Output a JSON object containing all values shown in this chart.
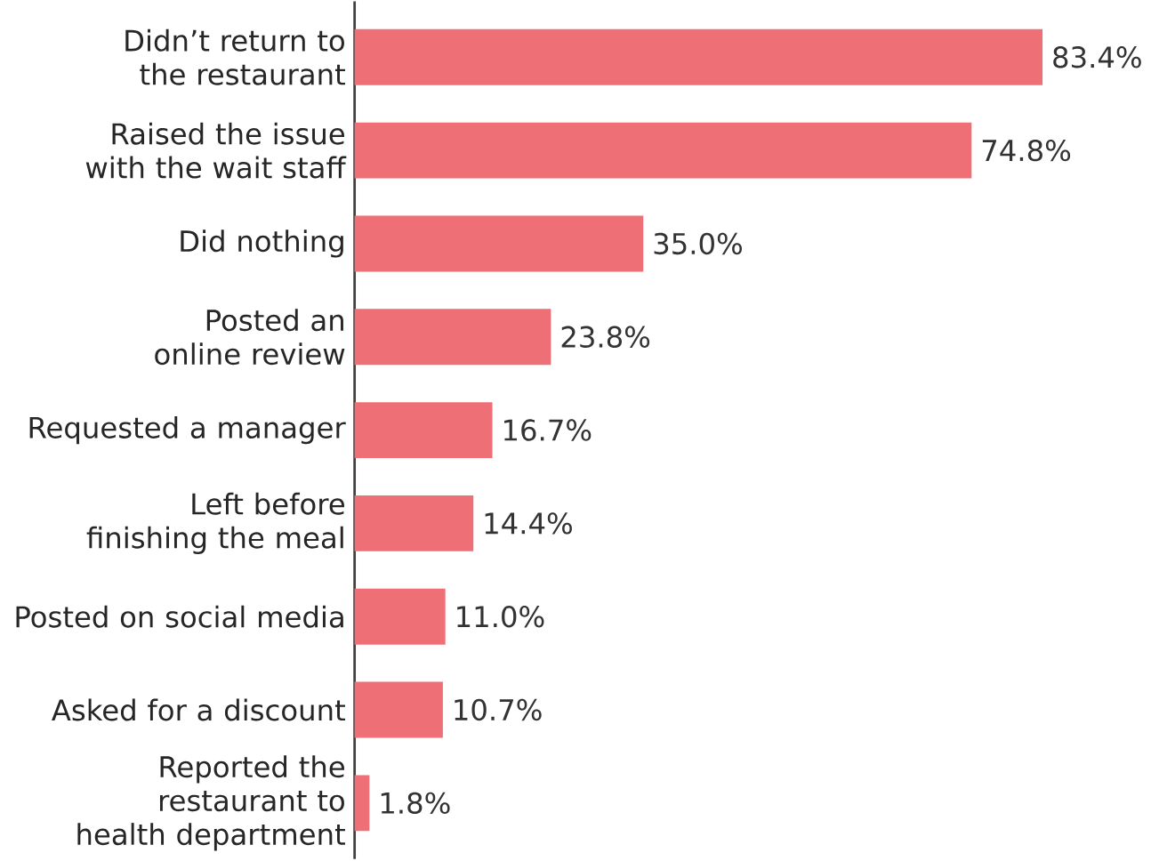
{
  "chart_data": {
    "type": "bar",
    "orientation": "horizontal",
    "categories": [
      "Didn’t return to the restaurant",
      "Raised the issue with the wait staff",
      "Did nothing",
      "Posted an online review",
      "Requested a manager",
      "Left before finishing the meal",
      "Posted on social media",
      "Asked for a discount",
      "Reported the restaurant to health department"
    ],
    "values": [
      83.4,
      74.8,
      35.0,
      23.8,
      16.7,
      14.4,
      11.0,
      10.7,
      1.8
    ],
    "value_labels": [
      "83.4%",
      "74.8%",
      "35.0%",
      "23.8%",
      "16.7%",
      "14.4%",
      "11.0%",
      "10.7%",
      "1.8%"
    ],
    "color": "#ee6f76"
  }
}
